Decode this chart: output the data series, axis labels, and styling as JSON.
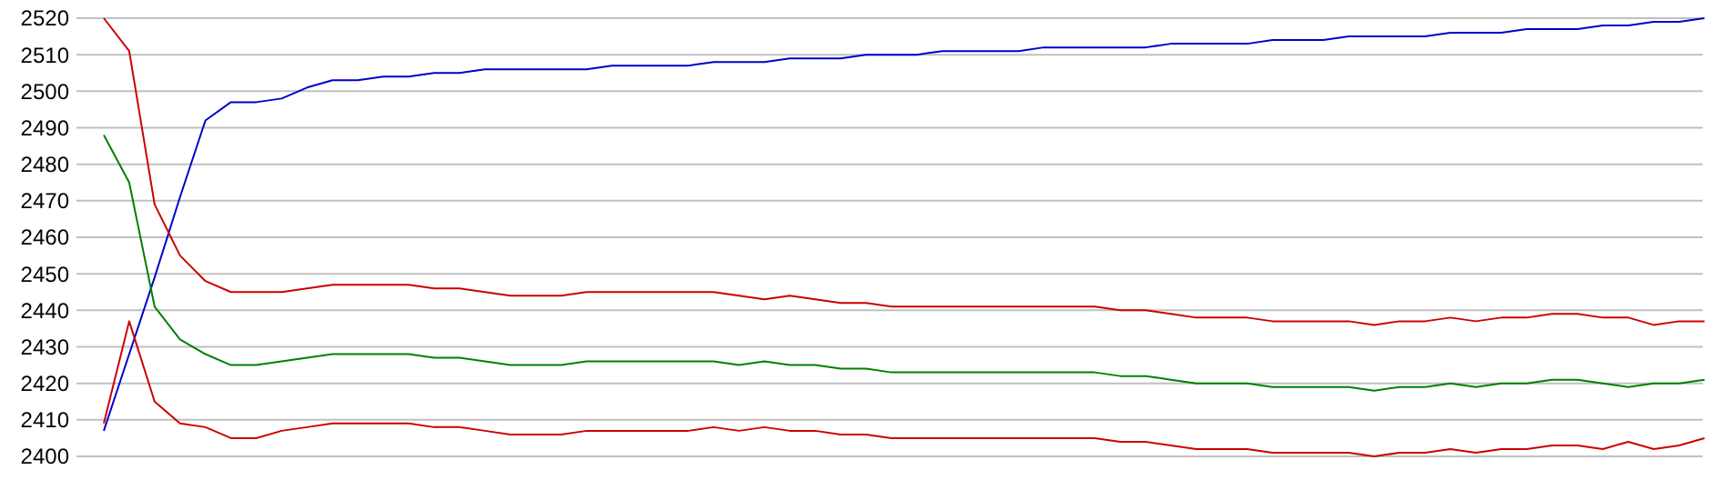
{
  "chart_data": {
    "type": "line",
    "categories": [
      null,
      null,
      null,
      null,
      null,
      null,
      null,
      null,
      null,
      null,
      null,
      null,
      null,
      null,
      null,
      null,
      null,
      null,
      null,
      null,
      null,
      null,
      null,
      null,
      null,
      null,
      null,
      null,
      null,
      null,
      null,
      null,
      null,
      null,
      null,
      null,
      null,
      null,
      null,
      null,
      null,
      null,
      null,
      null,
      null,
      null,
      null,
      null,
      null,
      null,
      null,
      null,
      null,
      null,
      null,
      null,
      null,
      null,
      null,
      null,
      null,
      null,
      null,
      null
    ],
    "series": [
      {
        "color": "#0000cc",
        "values": [
          2407,
          2428,
          2449,
          2471,
          2492,
          2497,
          2497,
          2498,
          2501,
          2503,
          2503,
          2504,
          2504,
          2505,
          2505,
          2506,
          2506,
          2506,
          2506,
          2506,
          2507,
          2507,
          2507,
          2507,
          2508,
          2508,
          2508,
          2509,
          2509,
          2509,
          2510,
          2510,
          2510,
          2511,
          2511,
          2511,
          2511,
          2512,
          2512,
          2512,
          2512,
          2512,
          2513,
          2513,
          2513,
          2513,
          2514,
          2514,
          2514,
          2515,
          2515,
          2515,
          2515,
          2516,
          2516,
          2516,
          2517,
          2517,
          2517,
          2518,
          2518,
          2519,
          2519,
          2520
        ]
      },
      {
        "color": "#cc0000",
        "values": [
          2520,
          2511,
          2469,
          2455,
          2448,
          2445,
          2445,
          2445,
          2446,
          2447,
          2447,
          2447,
          2447,
          2446,
          2446,
          2445,
          2444,
          2444,
          2444,
          2445,
          2445,
          2445,
          2445,
          2445,
          2445,
          2444,
          2443,
          2444,
          2443,
          2442,
          2442,
          2441,
          2441,
          2441,
          2441,
          2441,
          2441,
          2441,
          2441,
          2441,
          2440,
          2440,
          2439,
          2438,
          2438,
          2438,
          2437,
          2437,
          2437,
          2437,
          2436,
          2437,
          2437,
          2438,
          2437,
          2438,
          2438,
          2439,
          2439,
          2438,
          2438,
          2436,
          2437,
          2437
        ]
      },
      {
        "color": "#008000",
        "values": [
          2488,
          2475,
          2441,
          2432,
          2428,
          2425,
          2425,
          2426,
          2427,
          2428,
          2428,
          2428,
          2428,
          2427,
          2427,
          2426,
          2425,
          2425,
          2425,
          2426,
          2426,
          2426,
          2426,
          2426,
          2426,
          2425,
          2426,
          2425,
          2425,
          2424,
          2424,
          2423,
          2423,
          2423,
          2423,
          2423,
          2423,
          2423,
          2423,
          2423,
          2422,
          2422,
          2421,
          2420,
          2420,
          2420,
          2419,
          2419,
          2419,
          2419,
          2418,
          2419,
          2419,
          2420,
          2419,
          2420,
          2420,
          2421,
          2421,
          2420,
          2419,
          2420,
          2420,
          2421
        ]
      },
      {
        "color": "#cc0000",
        "values": [
          2409,
          2437,
          2415,
          2409,
          2408,
          2405,
          2405,
          2407,
          2408,
          2409,
          2409,
          2409,
          2409,
          2408,
          2408,
          2407,
          2406,
          2406,
          2406,
          2407,
          2407,
          2407,
          2407,
          2407,
          2408,
          2407,
          2408,
          2407,
          2407,
          2406,
          2406,
          2405,
          2405,
          2405,
          2405,
          2405,
          2405,
          2405,
          2405,
          2405,
          2404,
          2404,
          2403,
          2402,
          2402,
          2402,
          2401,
          2401,
          2401,
          2401,
          2400,
          2401,
          2401,
          2402,
          2401,
          2402,
          2402,
          2403,
          2403,
          2402,
          2404,
          2402,
          2403,
          2405
        ]
      }
    ],
    "ylim": [
      2400,
      2520
    ],
    "yticks": [
      2400,
      2410,
      2420,
      2430,
      2440,
      2450,
      2460,
      2470,
      2480,
      2490,
      2500,
      2510,
      2520
    ],
    "grid": "y",
    "tick_labels": "y",
    "marker": "none",
    "line_style": "solid"
  }
}
